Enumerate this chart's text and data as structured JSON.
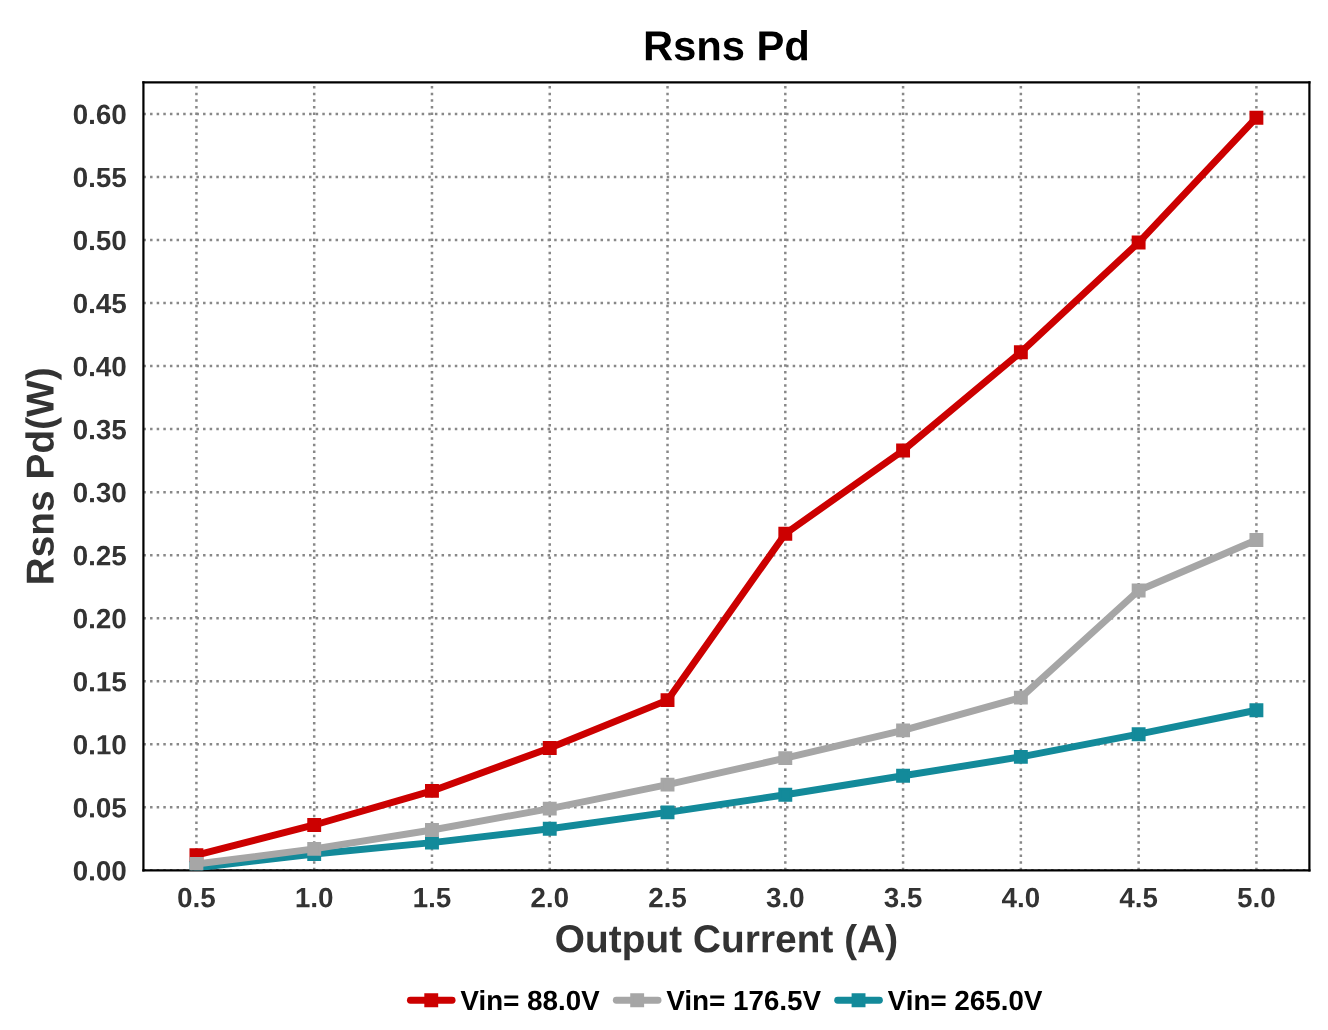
{
  "chart_data": {
    "type": "line",
    "title": "Rsns Pd",
    "xlabel": "Output Current (A)",
    "ylabel": "Rsns Pd(W)",
    "categories": [
      "0.5",
      "1.0",
      "1.5",
      "2.0",
      "2.5",
      "3.0",
      "3.5",
      "4.0",
      "4.5",
      "5.0"
    ],
    "series": [
      {
        "name": "Vin= 88.0V",
        "color": "#cc0000",
        "values": [
          0.012,
          0.036,
          0.063,
          0.097,
          0.135,
          0.267,
          0.333,
          0.411,
          0.498,
          0.597
        ]
      },
      {
        "name": "Vin= 176.5V",
        "color": "#a6a6a6",
        "values": [
          0.005,
          0.017,
          0.032,
          0.049,
          0.068,
          0.089,
          0.111,
          0.137,
          0.222,
          0.262
        ]
      },
      {
        "name": "Vin= 265.0V",
        "color": "#138a9a",
        "values": [
          0.002,
          0.013,
          0.022,
          0.033,
          0.046,
          0.06,
          0.075,
          0.09,
          0.108,
          0.127
        ]
      }
    ],
    "ylim": [
      0,
      0.625
    ],
    "yticks": [
      {
        "value": 0,
        "label": "0.00"
      },
      {
        "value": 0.05,
        "label": "0.05"
      },
      {
        "value": 0.1,
        "label": "0.10"
      },
      {
        "value": 0.15,
        "label": "0.15"
      },
      {
        "value": 0.2,
        "label": "0.20"
      },
      {
        "value": 0.25,
        "label": "0.25"
      },
      {
        "value": 0.3,
        "label": "0.30"
      },
      {
        "value": 0.35,
        "label": "0.35"
      },
      {
        "value": 0.4,
        "label": "0.40"
      },
      {
        "value": 0.45,
        "label": "0.45"
      },
      {
        "value": 0.5,
        "label": "0.50"
      },
      {
        "value": 0.55,
        "label": "0.55"
      },
      {
        "value": 0.6,
        "label": "0.60"
      }
    ],
    "grid": true,
    "legend": "bottom",
    "marker": "square",
    "line_style": "solid"
  }
}
